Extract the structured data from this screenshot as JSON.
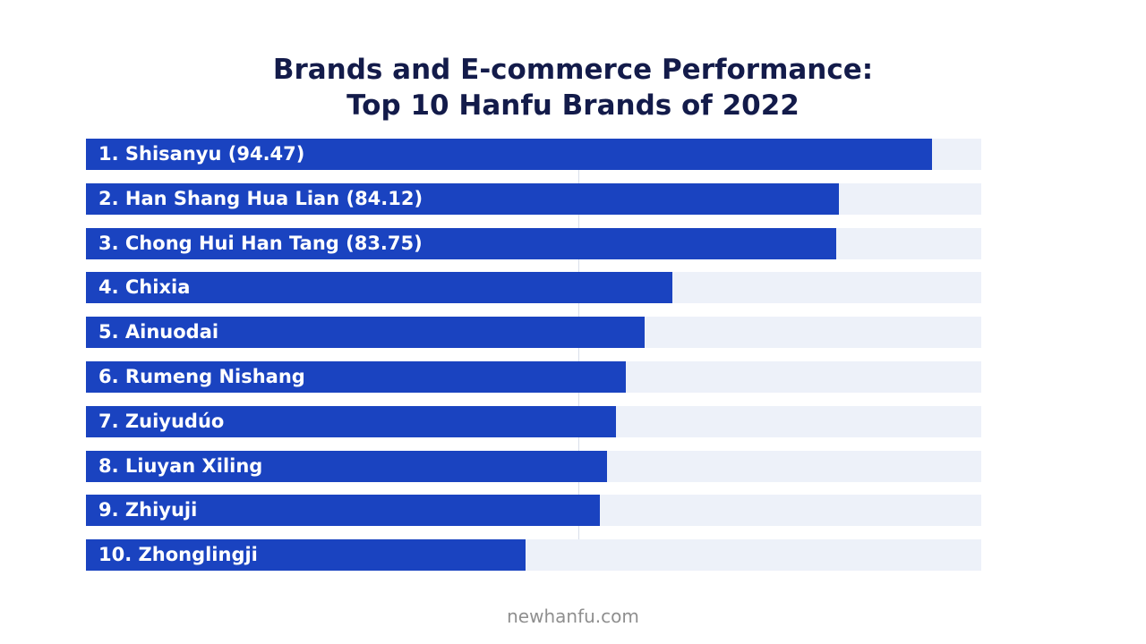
{
  "title_line1": "Brands and E-commerce Performance:",
  "title_line2": "Top 10 Hanfu Brands of 2022",
  "footer": "newhanfu.com",
  "colors": {
    "bar": "#1a43c0",
    "track": "#edf1f9",
    "title": "#131b4a"
  },
  "chart_data": {
    "type": "bar",
    "orientation": "horizontal",
    "title": "Brands and E-commerce Performance: Top 10 Hanfu Brands of 2022",
    "categories": [
      "1. Shisanyu (94.47)",
      "2. Han Shang Hua Lian (84.12)",
      "3. Chong Hui Han Tang (83.75)",
      "4. Chixia",
      "5. Ainuodai",
      "6. Rumeng Nishang",
      "7. Zuiyudúo",
      "8. Liuyan Xiling",
      "9. Zhiyuji",
      "10. Zhonglingji"
    ],
    "values": [
      94.47,
      84.12,
      83.75,
      65.5,
      62.4,
      60.3,
      59.2,
      58.2,
      57.4,
      49.1
    ],
    "xlim": [
      0,
      100
    ],
    "grid": true,
    "legend": "none"
  }
}
